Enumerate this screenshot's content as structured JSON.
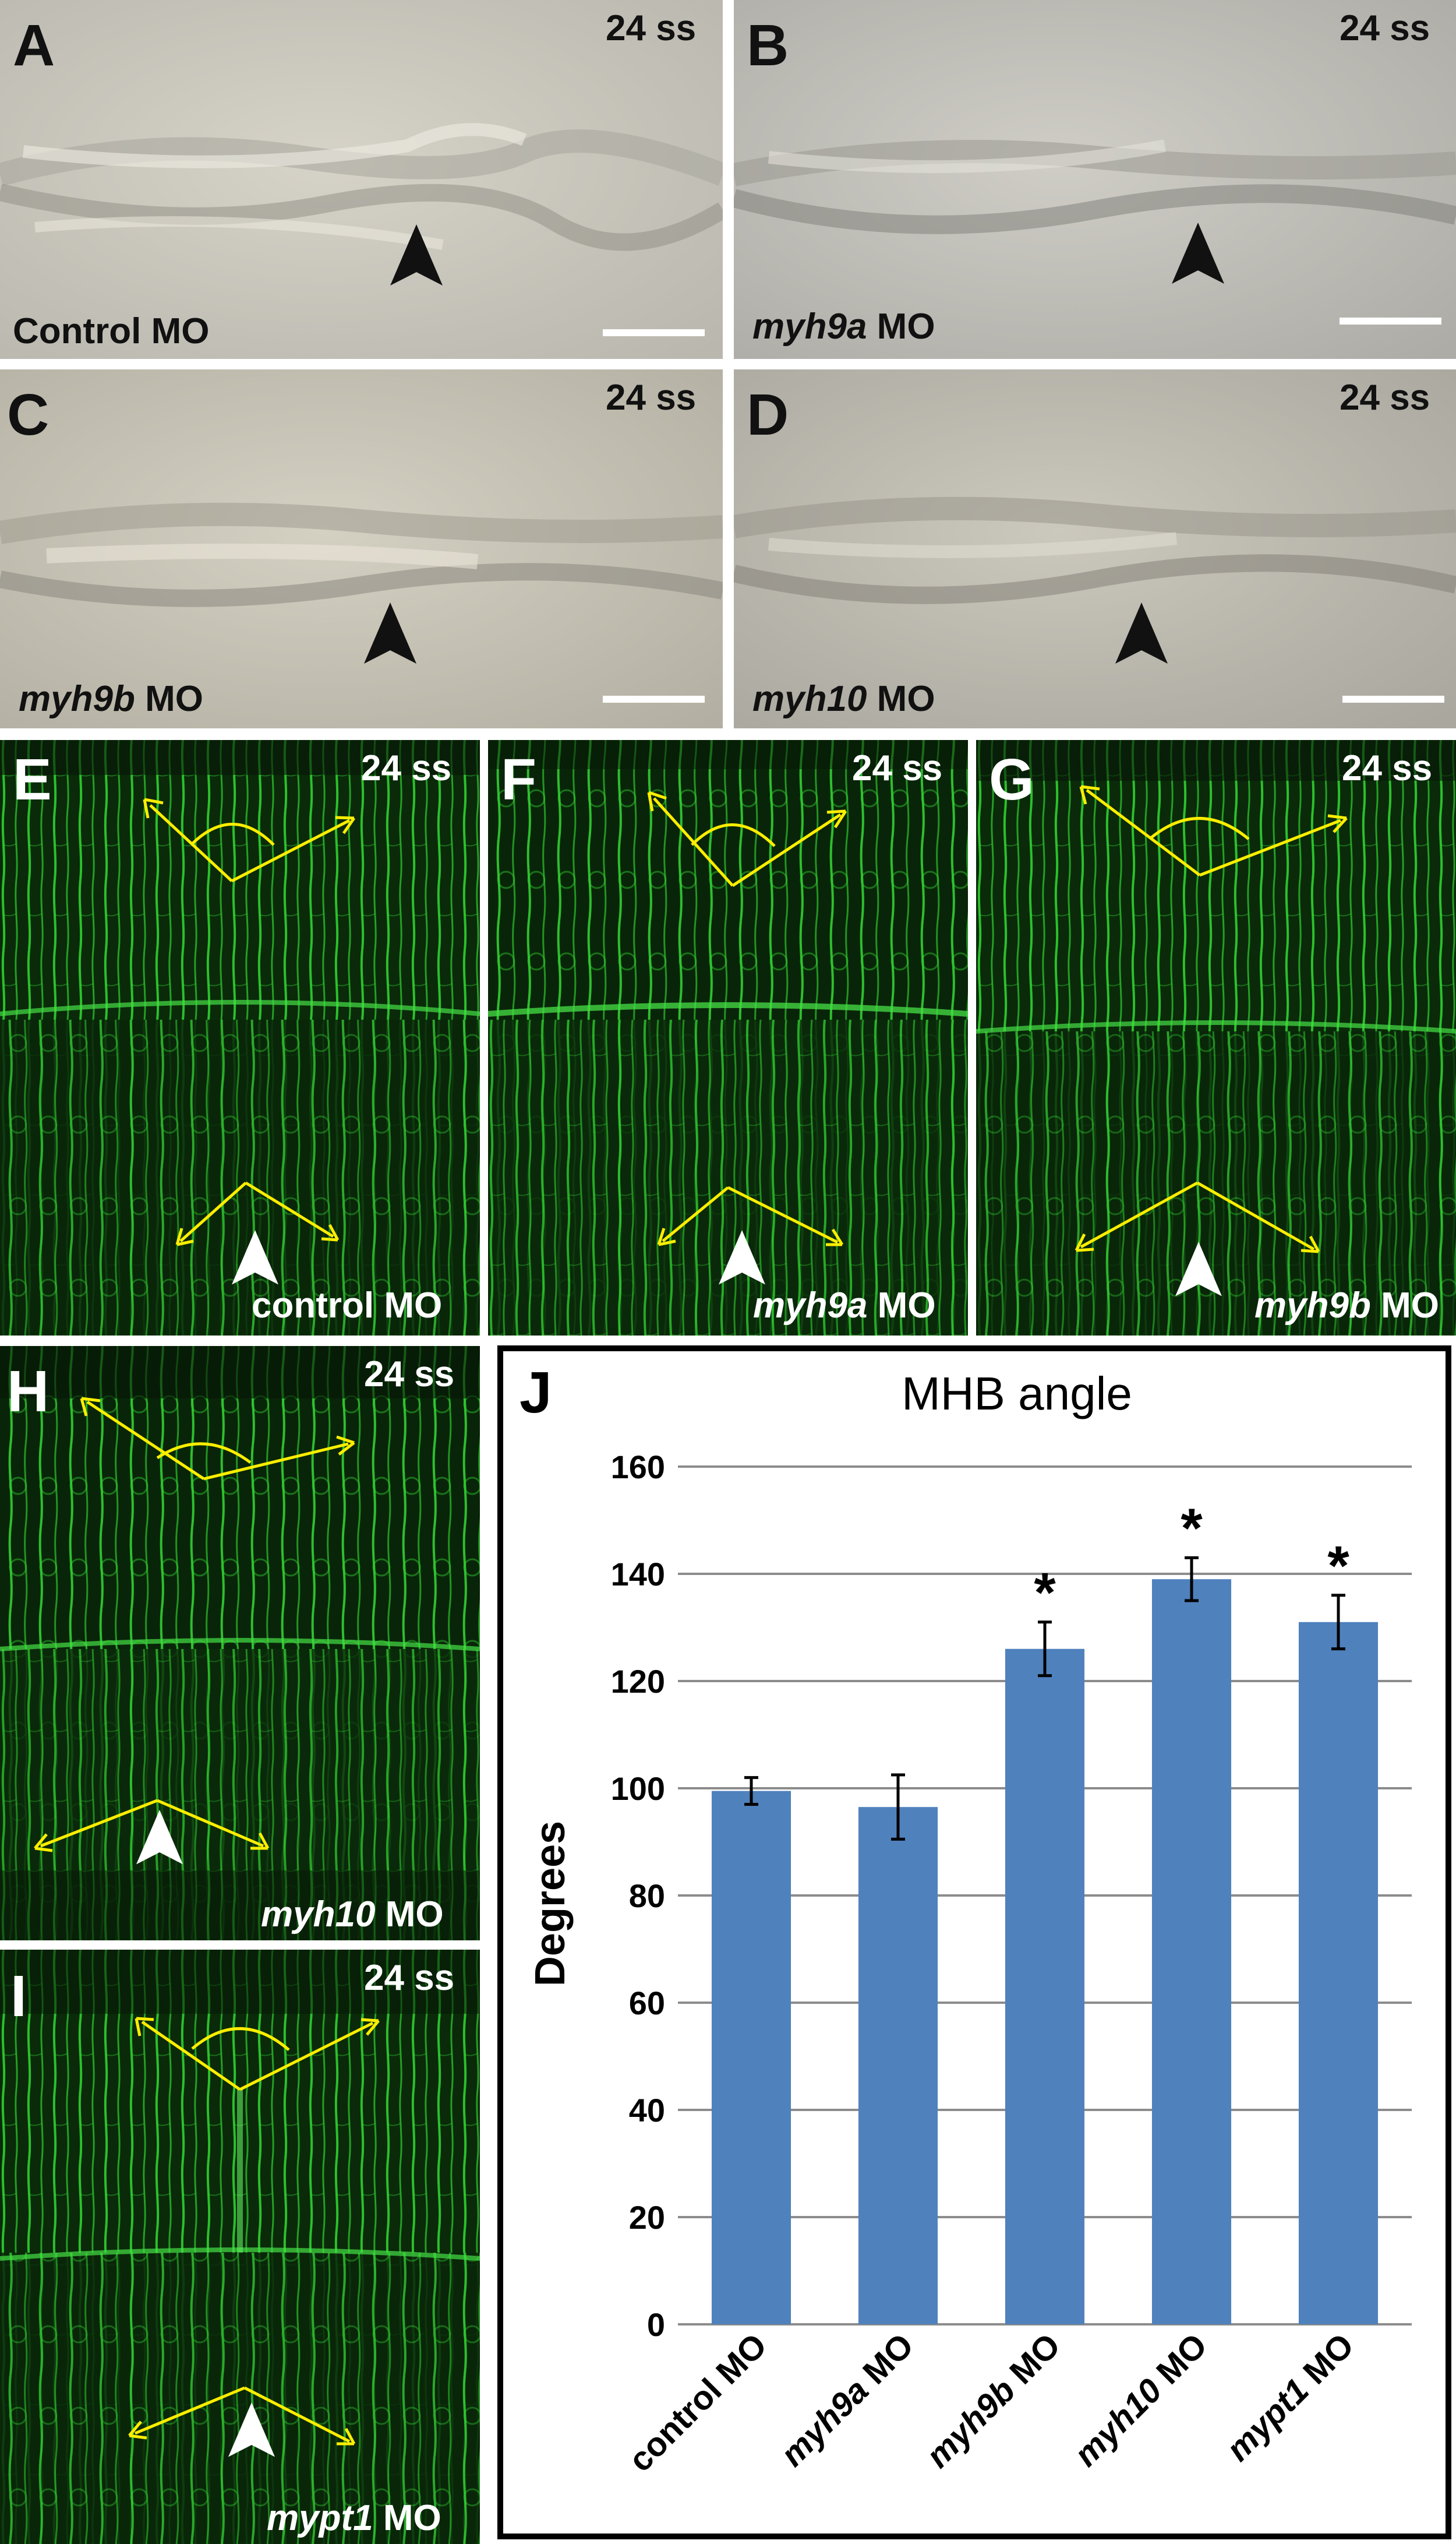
{
  "figure": {
    "colors": {
      "brightfield_bg": "#c7c5bc",
      "fluorescence_bg": "#0a2a0a",
      "membrane_green": "#2fd12f",
      "angle_yellow": "#ffee00",
      "bar_blue": "#4f81bd",
      "arrowhead_black": "#111111",
      "arrowhead_white": "#ffffff"
    },
    "panels": {
      "A": {
        "label": "A",
        "stage": "24 ss",
        "cond_pre": "Control MO",
        "cond_gene": "",
        "cond_post": ""
      },
      "B": {
        "label": "B",
        "stage": "24 ss",
        "cond_pre": "",
        "cond_gene": "myh9a",
        "cond_post": " MO"
      },
      "C": {
        "label": "C",
        "stage": "24 ss",
        "cond_pre": "",
        "cond_gene": "myh9b",
        "cond_post": " MO"
      },
      "D": {
        "label": "D",
        "stage": "24 ss",
        "cond_pre": "",
        "cond_gene": "myh10",
        "cond_post": " MO"
      },
      "E": {
        "label": "E",
        "stage": "24 ss",
        "cond_pre": "control MO",
        "cond_gene": "",
        "cond_post": ""
      },
      "F": {
        "label": "F",
        "stage": "24 ss",
        "cond_pre": "",
        "cond_gene": "myh9a",
        "cond_post": " MO"
      },
      "G": {
        "label": "G",
        "stage": "24 ss",
        "cond_pre": "",
        "cond_gene": "myh9b",
        "cond_post": " MO"
      },
      "H": {
        "label": "H",
        "stage": "24 ss",
        "cond_pre": "",
        "cond_gene": "myh10",
        "cond_post": " MO"
      },
      "I": {
        "label": "I",
        "stage": "24 ss",
        "cond_pre": "",
        "cond_gene": "mypt1",
        "cond_post": " MO"
      },
      "J": {
        "label": "J"
      }
    }
  },
  "chart_data": {
    "type": "bar",
    "title": "MHB angle",
    "ylabel": "Degrees",
    "xlabel": "",
    "ylim": [
      0,
      160
    ],
    "yticks": [
      0,
      20,
      40,
      60,
      80,
      100,
      120,
      140,
      160
    ],
    "grid": true,
    "categories": [
      {
        "gene": "control",
        "suffix": "MO",
        "italic": false
      },
      {
        "gene": "myh9a",
        "suffix": " MO",
        "italic": true
      },
      {
        "gene": "myh9b",
        "suffix": " MO",
        "italic": true
      },
      {
        "gene": "myh10",
        "suffix": " MO",
        "italic": true
      },
      {
        "gene": "mypt1",
        "suffix": " MO",
        "italic": true
      }
    ],
    "values": [
      99.5,
      96.5,
      126,
      139,
      131
    ],
    "errors": [
      2.5,
      6,
      5,
      4,
      5
    ],
    "significance": [
      "",
      "",
      "*",
      "*",
      "*"
    ],
    "bar_color": "#4f81bd"
  }
}
